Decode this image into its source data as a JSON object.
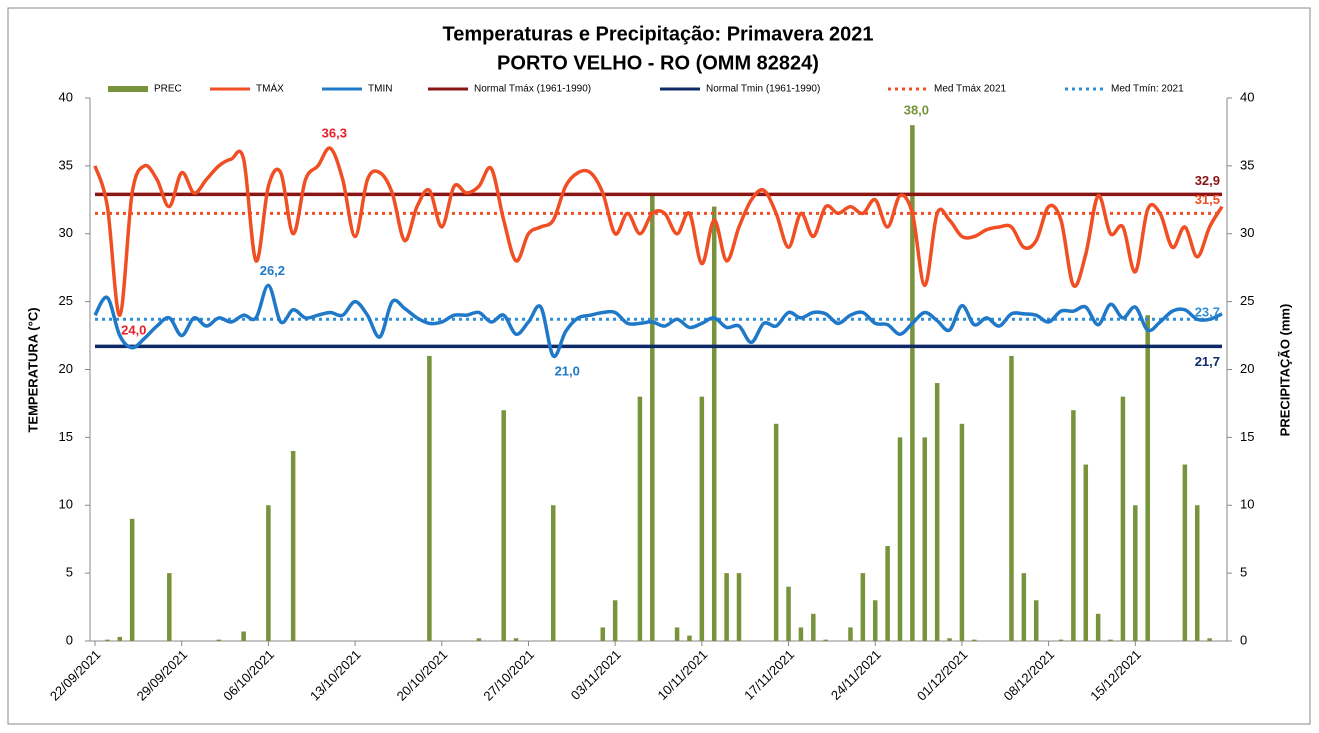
{
  "chart_data": {
    "type": "bar_line",
    "title": "Temperaturas  e Precipitação: Primavera 2021",
    "subtitle": "PORTO VELHO - RO (OMM 82824)",
    "y_label": "TEMPERATURA  (°C)",
    "y2_label": "PRECIPITAÇÃO (mm)",
    "ylim": [
      0,
      40
    ],
    "yticks": [
      0,
      5,
      10,
      15,
      20,
      25,
      30,
      35,
      40
    ],
    "y2lim": [
      0,
      40
    ],
    "y2ticks": [
      0,
      5,
      10,
      15,
      20,
      25,
      30,
      35,
      40
    ],
    "categories": [
      "22/09/2021",
      null,
      null,
      null,
      null,
      null,
      null,
      "29/09/2021",
      null,
      null,
      null,
      null,
      null,
      null,
      "06/10/2021",
      null,
      null,
      null,
      null,
      null,
      null,
      "13/10/2021",
      null,
      null,
      null,
      null,
      null,
      null,
      "20/10/2021",
      null,
      null,
      null,
      null,
      null,
      null,
      "27/10/2021",
      null,
      null,
      null,
      null,
      null,
      null,
      "03/11/2021",
      null,
      null,
      null,
      null,
      null,
      null,
      "10/11/2021",
      null,
      null,
      null,
      null,
      null,
      null,
      "17/11/2021",
      null,
      null,
      null,
      null,
      null,
      null,
      "24/11/2021",
      null,
      null,
      null,
      null,
      null,
      null,
      "01/12/2021",
      null,
      null,
      null,
      null,
      null,
      null,
      "08/12/2021",
      null,
      null,
      null,
      null,
      null,
      null,
      "15/12/2021",
      null,
      null,
      null,
      null,
      null,
      null,
      null
    ],
    "series": [
      {
        "name": "PREC",
        "type": "bar",
        "axis": "y2",
        "color": "#77933c",
        "values": [
          0,
          0.1,
          0.3,
          9,
          0,
          0,
          5,
          0,
          0,
          0,
          0.1,
          0,
          0.7,
          0,
          10,
          0,
          14,
          0,
          0,
          0,
          0,
          0,
          0,
          0,
          0,
          0,
          0,
          21,
          0,
          0,
          0,
          0.2,
          0,
          17,
          0.2,
          0,
          0,
          10,
          0,
          0,
          0,
          1,
          3,
          0,
          18,
          33,
          0,
          1,
          0.4,
          18,
          32,
          5,
          5,
          0,
          0,
          16,
          4,
          1,
          2,
          0.1,
          0,
          1,
          5,
          3,
          7,
          15,
          38,
          15,
          19,
          0.2,
          16,
          0.1,
          0,
          0,
          21,
          5,
          3,
          0,
          0.1,
          17,
          13,
          2,
          0.1,
          18,
          10,
          24,
          0,
          0,
          13,
          10,
          0.2,
          0
        ],
        "value_labels": [
          null,
          null,
          null,
          null,
          null,
          null,
          null,
          null,
          null,
          null,
          null,
          null,
          null,
          null,
          null,
          null,
          null,
          null,
          null,
          null,
          null,
          null,
          null,
          null,
          null,
          null,
          null,
          null,
          null,
          null,
          null,
          null,
          null,
          null,
          null,
          null,
          null,
          null,
          null,
          null,
          null,
          null,
          null,
          null,
          null,
          null,
          null,
          null,
          null,
          null,
          null,
          null,
          null,
          null,
          null,
          null,
          null,
          null,
          null,
          null,
          null,
          null,
          null,
          null,
          null,
          null,
          "38,0",
          null,
          null,
          null,
          null,
          null,
          null,
          null,
          null,
          null,
          null,
          null,
          null,
          null,
          null,
          null,
          null,
          null,
          null,
          null,
          null,
          null,
          null,
          null,
          null,
          null
        ],
        "label_color": "#77933c"
      },
      {
        "name": "TMÁX",
        "type": "line",
        "color": "#f04e23",
        "values": [
          35,
          32,
          24,
          33,
          35,
          34,
          32,
          34.5,
          33,
          34,
          35,
          35.5,
          35.5,
          28,
          33.5,
          34.5,
          30,
          34,
          35,
          36.3,
          34,
          29.8,
          34,
          34.5,
          33,
          29.5,
          32,
          33.2,
          30.5,
          33.5,
          33,
          33.5,
          34.8,
          31,
          28,
          30,
          30.5,
          31,
          33.5,
          34.5,
          34.5,
          33,
          30,
          31.5,
          30,
          31.5,
          31.5,
          30,
          31.5,
          27.8,
          31,
          28,
          30.5,
          32.5,
          33.2,
          31.5,
          29,
          31.5,
          29.8,
          32,
          31.5,
          32,
          31.5,
          32.5,
          30.5,
          32.8,
          31.5,
          26.2,
          31.5,
          31,
          29.8,
          29.8,
          30.3,
          30.5,
          30.5,
          29,
          29.5,
          32,
          31,
          26.2,
          28.5,
          32.8,
          30,
          30.5,
          27.2,
          31.8,
          31.5,
          29,
          30.5,
          28.3,
          30.5,
          32
        ],
        "value_labels": [
          null,
          null,
          "24,0",
          null,
          null,
          null,
          null,
          null,
          null,
          null,
          null,
          null,
          null,
          null,
          null,
          null,
          null,
          null,
          null,
          "36,3",
          null,
          null,
          null,
          null,
          null,
          null,
          null,
          null,
          null,
          null,
          null,
          null,
          null,
          null,
          null,
          null,
          null,
          null,
          null,
          null,
          null,
          null,
          null,
          null,
          null,
          null,
          null,
          null,
          null,
          null,
          null,
          null,
          null,
          null,
          null,
          null,
          null,
          null,
          null,
          null,
          null,
          null,
          null,
          null,
          null,
          null,
          null,
          null,
          null,
          null,
          null,
          null,
          null,
          null,
          null,
          null,
          null,
          null,
          null,
          null,
          null,
          null,
          null,
          null,
          null,
          null,
          null,
          null,
          null,
          null,
          null,
          null
        ],
        "label_color": "#e8202a"
      },
      {
        "name": "TMIN",
        "type": "line",
        "color": "#1f78c8",
        "values": [
          24,
          25.3,
          22.5,
          21.6,
          22.3,
          23.2,
          23.8,
          22.5,
          23.8,
          23.2,
          23.8,
          23.5,
          24,
          23.8,
          26.2,
          23.5,
          24.4,
          23.8,
          24,
          24.2,
          24,
          25,
          24,
          22.4,
          25,
          24.5,
          23.8,
          23.4,
          23.5,
          24,
          24,
          24.2,
          23.5,
          24,
          22.6,
          23.5,
          24.6,
          21,
          22.8,
          23.8,
          24,
          24.2,
          24.2,
          23.4,
          23.4,
          23.5,
          23.2,
          23.7,
          23.1,
          23.4,
          23.8,
          23.1,
          23.2,
          22,
          23.4,
          23.2,
          24.2,
          23.8,
          24.2,
          24.1,
          23.4,
          24,
          24.2,
          23.4,
          23.3,
          22.6,
          23.4,
          24.2,
          23.6,
          22.9,
          24.7,
          23.3,
          23.8,
          23.2,
          24.1,
          24.1,
          24,
          23.5,
          24.3,
          24.3,
          24.6,
          23.3,
          24.8,
          23.8,
          24.6,
          22.9,
          23.5,
          24.3,
          24.4,
          23.7,
          23.7,
          24.1
        ],
        "value_labels": [
          null,
          null,
          null,
          null,
          null,
          null,
          null,
          null,
          null,
          null,
          null,
          null,
          null,
          null,
          "26,2",
          null,
          null,
          null,
          null,
          null,
          null,
          null,
          null,
          null,
          null,
          null,
          null,
          null,
          null,
          null,
          null,
          null,
          null,
          null,
          null,
          null,
          null,
          "21,0",
          null,
          null,
          null,
          null,
          null,
          null,
          null,
          null,
          null,
          null,
          null,
          null,
          null,
          null,
          null,
          null,
          null,
          null,
          null,
          null,
          null,
          null,
          null,
          null,
          null,
          null,
          null,
          null,
          null,
          null,
          null,
          null,
          null,
          null,
          null,
          null,
          null,
          null,
          null,
          null,
          null,
          null,
          null,
          null,
          null,
          null,
          null,
          null,
          null,
          null,
          null,
          null,
          null,
          null
        ],
        "label_color": "#1f78c8"
      }
    ],
    "reference_lines": [
      {
        "name": "Normal Tmáx (1961-1990)",
        "value": 32.9,
        "value_label": "32,9",
        "color": "#8b1414",
        "style": "solid"
      },
      {
        "name": "Normal Tmin (1961-1990)",
        "value": 21.7,
        "value_label": "21,7",
        "color": "#0f2a66",
        "style": "solid"
      },
      {
        "name": "Med Tmáx 2021",
        "value": 31.5,
        "value_label": "31,5",
        "color": "#f04e23",
        "style": "dotted"
      },
      {
        "name": "Med Tmín: 2021",
        "value": 23.7,
        "value_label": "23,7",
        "color": "#2e8fd6",
        "style": "dotted"
      }
    ],
    "legend": "top"
  }
}
